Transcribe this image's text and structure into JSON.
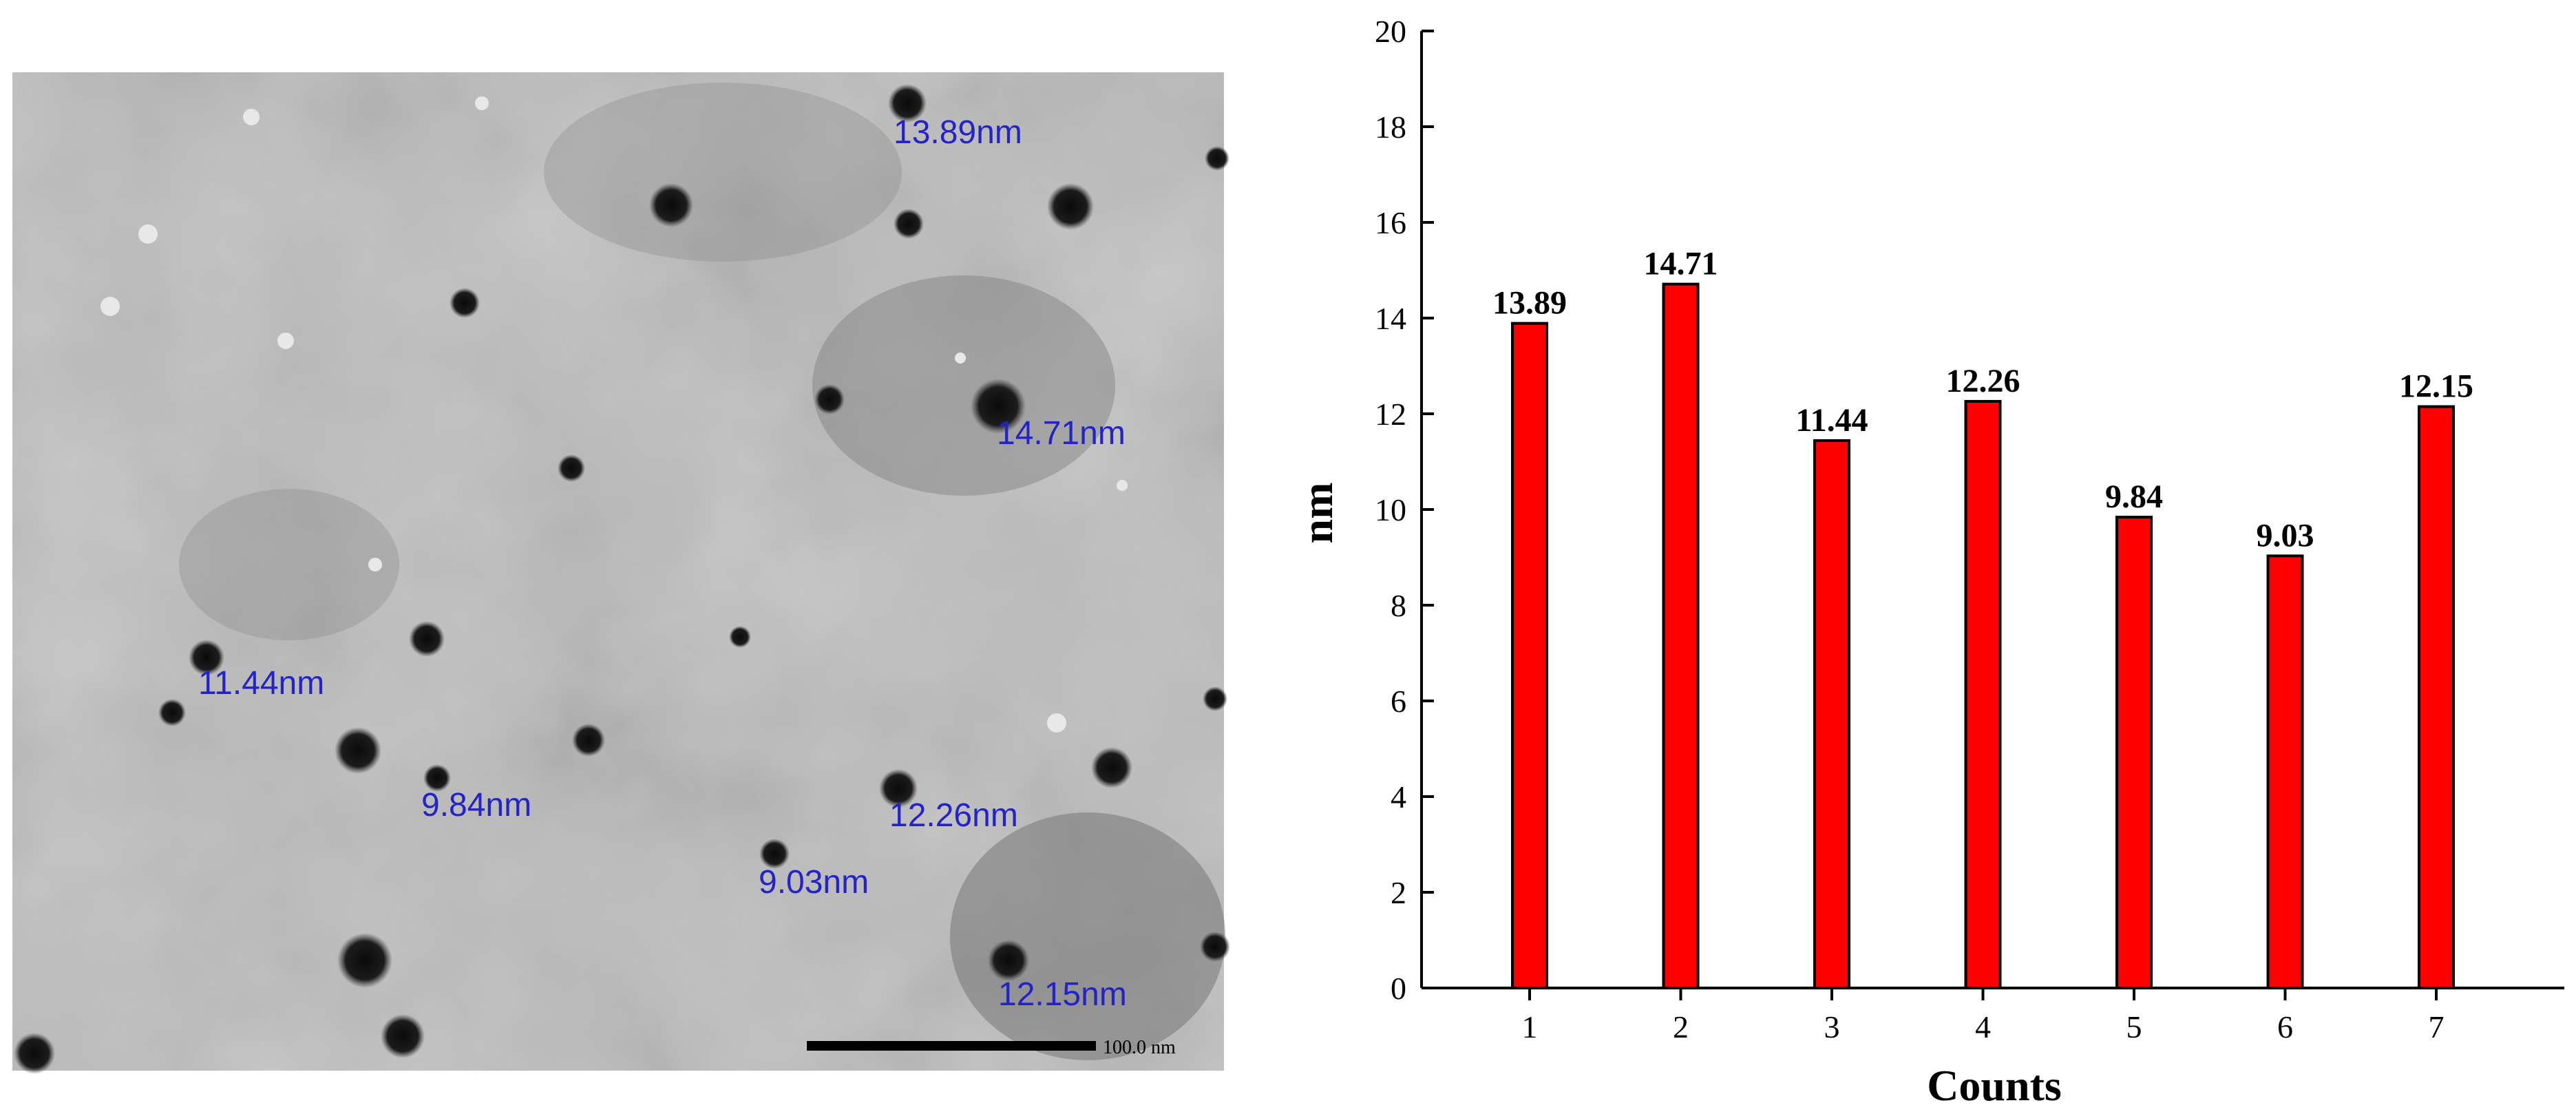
{
  "micrograph": {
    "particle_labels": [
      "13.89nm",
      "14.71nm",
      "11.44nm",
      "9.84nm",
      "12.26nm",
      "9.03nm",
      "12.15nm"
    ],
    "scale_bar_label": "100.0 nm",
    "label_color": "#2323c8"
  },
  "chart_data": {
    "type": "bar",
    "categories": [
      "1",
      "2",
      "3",
      "4",
      "5",
      "6",
      "7"
    ],
    "values": [
      13.89,
      14.71,
      11.44,
      12.26,
      9.84,
      9.03,
      12.15
    ],
    "data_labels": [
      "13.89",
      "14.71",
      "11.44",
      "12.26",
      "9.84",
      "9.03",
      "12.15"
    ],
    "xlabel": "Counts",
    "ylabel": "nm",
    "ylim": [
      0,
      20
    ],
    "yticks": [
      0,
      2,
      4,
      6,
      8,
      10,
      12,
      14,
      16,
      18,
      20
    ],
    "bar_color": "#ff0000",
    "grid": false,
    "legend": "none"
  }
}
